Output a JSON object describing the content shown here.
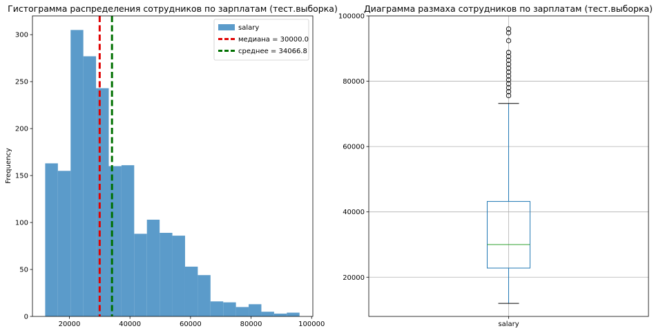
{
  "chart_data": [
    {
      "type": "bar",
      "title": "Гистограмма распределения сотрудников по зарплатам (тест.выборка)",
      "xlabel": "",
      "ylabel": "Frequency",
      "xlim": [
        7800,
        100400
      ],
      "ylim": [
        0,
        320
      ],
      "xticks": [
        20000,
        40000,
        60000,
        80000,
        100000
      ],
      "xtick_labels": [
        "20000",
        "40000",
        "60000",
        "80000",
        "100000"
      ],
      "yticks": [
        0,
        50,
        100,
        150,
        200,
        250,
        300
      ],
      "ytick_labels": [
        "0",
        "50",
        "100",
        "150",
        "200",
        "250",
        "300"
      ],
      "bin_edges": [
        12000,
        16200,
        20400,
        24600,
        28800,
        33000,
        37200,
        41400,
        45600,
        49800,
        54000,
        58200,
        62400,
        66600,
        70800,
        75000,
        79200,
        83400,
        87600,
        91800,
        96000
      ],
      "series": [
        {
          "name": "salary",
          "color": "#5b9bca",
          "values": [
            163,
            155,
            305,
            277,
            243,
            160,
            161,
            88,
            103,
            89,
            86,
            53,
            44,
            16,
            15,
            10,
            13,
            5,
            3,
            4
          ]
        }
      ],
      "reference_lines": [
        {
          "label": "медиана = 30000.0",
          "x": 30000.0,
          "color": "#e00000",
          "style": "dashed"
        },
        {
          "label": "среднее = 34066.8",
          "x": 34066.8,
          "color": "#007000",
          "style": "dashed"
        }
      ],
      "legend": {
        "placement": "top-right",
        "entries": [
          "salary",
          "медиана = 30000.0",
          "среднее = 34066.8"
        ]
      },
      "grid": false
    },
    {
      "type": "box",
      "title": "Диаграмма размаха сотрудников по зарплатам (тест.выборка)",
      "categories": [
        "salary"
      ],
      "ylim": [
        8000,
        100000
      ],
      "yticks": [
        20000,
        40000,
        60000,
        80000,
        100000
      ],
      "ytick_labels": [
        "20000",
        "40000",
        "60000",
        "80000",
        "100000"
      ],
      "box": {
        "whisker_low": 12000,
        "q1": 22800,
        "median": 30000,
        "q3": 43200,
        "whisker_high": 73200,
        "outliers": [
          75600,
          76800,
          78000,
          79200,
          80400,
          81600,
          82800,
          84000,
          85200,
          86400,
          87600,
          88800,
          92400,
          94800,
          96000
        ]
      },
      "colors": {
        "box": "#1f77b4",
        "median": "#2ca02c",
        "grid": "#b0b0b0"
      },
      "grid": true
    }
  ]
}
